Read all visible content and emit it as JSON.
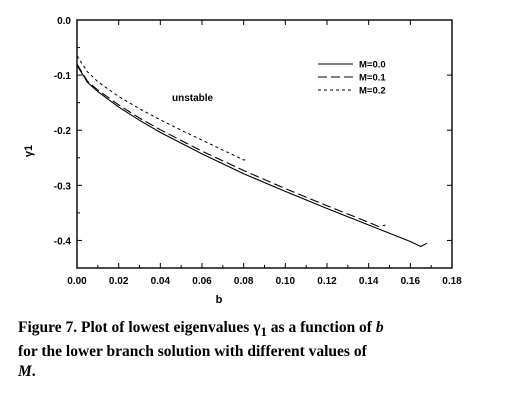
{
  "chart_data": {
    "type": "line",
    "title": "",
    "xlabel": "b",
    "ylabel": "γ1",
    "xlim": [
      0.0,
      0.18
    ],
    "ylim": [
      -0.45,
      0.0
    ],
    "x_ticks": [
      0.0,
      0.02,
      0.04,
      0.06,
      0.08,
      0.1,
      0.12,
      0.14,
      0.16,
      0.18
    ],
    "y_ticks": [
      0.0,
      -0.1,
      -0.2,
      -0.3,
      -0.4
    ],
    "x_tick_labels": [
      "0.00",
      "0.02",
      "0.04",
      "0.06",
      "0.08",
      "0.10",
      "0.12",
      "0.14",
      "0.16",
      "0.18"
    ],
    "y_tick_labels": [
      "0.0",
      "-0.1",
      "-0.2",
      "-0.3",
      "-0.4"
    ],
    "grid": false,
    "legend_position": "top-right",
    "annotation": "unstable",
    "series": [
      {
        "name": "M=0.0",
        "style": "solid",
        "x": [
          0.0,
          0.005,
          0.01,
          0.02,
          0.03,
          0.04,
          0.06,
          0.08,
          0.1,
          0.12,
          0.14,
          0.15,
          0.16,
          0.165,
          0.168
        ],
        "y": [
          -0.082,
          -0.113,
          -0.13,
          -0.158,
          -0.182,
          -0.204,
          -0.243,
          -0.279,
          -0.311,
          -0.342,
          -0.372,
          -0.387,
          -0.402,
          -0.411,
          -0.405
        ]
      },
      {
        "name": "M=0.1",
        "style": "dashed",
        "x": [
          0.0,
          0.005,
          0.01,
          0.02,
          0.03,
          0.04,
          0.06,
          0.08,
          0.1,
          0.12,
          0.13,
          0.14,
          0.145,
          0.148
        ],
        "y": [
          -0.08,
          -0.111,
          -0.127,
          -0.154,
          -0.178,
          -0.199,
          -0.238,
          -0.273,
          -0.306,
          -0.337,
          -0.352,
          -0.367,
          -0.375,
          -0.372
        ]
      },
      {
        "name": "M=0.2",
        "style": "dotted",
        "x": [
          0.0,
          0.005,
          0.01,
          0.02,
          0.03,
          0.04,
          0.05,
          0.06,
          0.07,
          0.075,
          0.08,
          0.082
        ],
        "y": [
          -0.065,
          -0.094,
          -0.112,
          -0.139,
          -0.161,
          -0.181,
          -0.2,
          -0.218,
          -0.236,
          -0.245,
          -0.254,
          -0.253
        ]
      }
    ]
  },
  "caption": {
    "line1": "Figure 7. Plot of lowest eigenvalues γ",
    "line1_sub": "1",
    "line1_rest": " as a function of ",
    "line1_var": "b",
    "line2": "for the lower branch solution with different values of",
    "line3_var": "M",
    "line3_rest": "."
  }
}
